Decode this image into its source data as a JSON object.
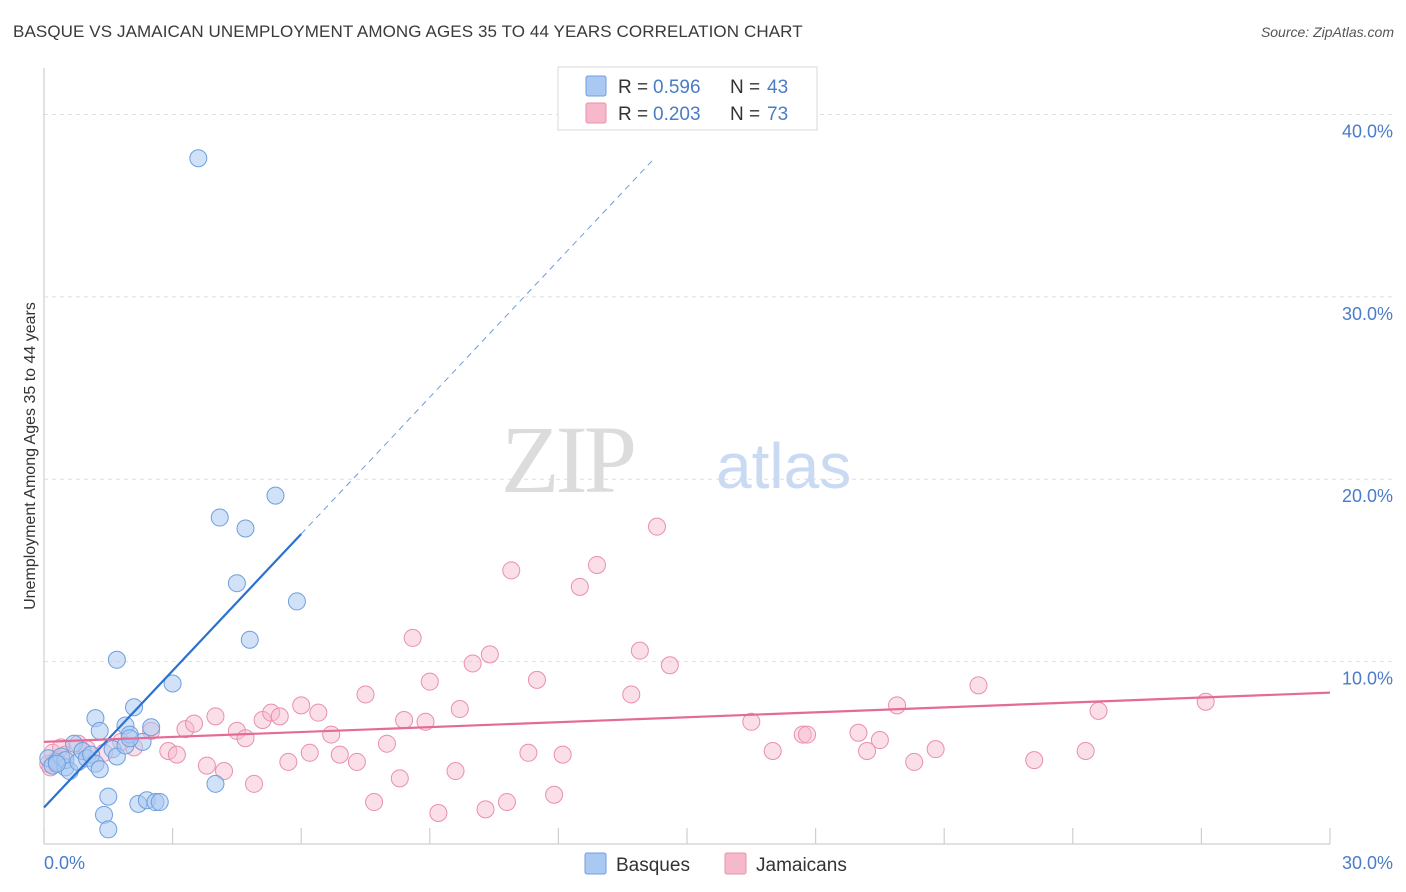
{
  "title": "BASQUE VS JAMAICAN UNEMPLOYMENT AMONG AGES 35 TO 44 YEARS CORRELATION CHART",
  "source": "Source: ZipAtlas.com",
  "watermark": {
    "zip": "ZIP",
    "atlas": "atlas"
  },
  "colors": {
    "basque_fill": "#a9c9f2",
    "basque_stroke": "#6e9fdd",
    "basque_line": "#2b72d0",
    "jamaican_fill": "#f6b9cc",
    "jamaican_stroke": "#ea8fab",
    "jamaican_line": "#e46b98",
    "tick_label": "#4a7cc8",
    "grid": "#dedede"
  },
  "legend_top": [
    {
      "series": "Basques",
      "r_label": "R =",
      "r_value": "0.596",
      "n_label": "N =",
      "n_value": "43"
    },
    {
      "series": "Jamaicans",
      "r_label": "R =",
      "r_value": "0.203",
      "n_label": "N =",
      "n_value": "73"
    }
  ],
  "chart_data": {
    "type": "scatter",
    "title": "BASQUE VS JAMAICAN UNEMPLOYMENT AMONG AGES 35 TO 44 YEARS CORRELATION CHART",
    "xlabel": "",
    "ylabel": "Unemployment Among Ages 35 to 44 years",
    "xlim": [
      0,
      30
    ],
    "ylim": [
      0,
      42
    ],
    "x_tick_labels": [
      "0.0%",
      "30.0%"
    ],
    "y_ticks": [
      10,
      20,
      30,
      40
    ],
    "y_tick_labels": [
      "10.0%",
      "20.0%",
      "30.0%",
      "40.0%"
    ],
    "grid": true,
    "legend_position": "bottom-center",
    "series": [
      {
        "name": "Basques",
        "r": 0.596,
        "n": 43,
        "trend": {
          "x0": 0,
          "y0": 2.0,
          "x1": 6.0,
          "y1": 17.0,
          "dash_x1": 14.2,
          "dash_y1": 37.5
        },
        "points": [
          [
            0.1,
            4.7
          ],
          [
            0.2,
            4.3
          ],
          [
            0.3,
            4.5
          ],
          [
            0.4,
            4.8
          ],
          [
            0.5,
            4.2
          ],
          [
            0.5,
            4.6
          ],
          [
            0.6,
            4.0
          ],
          [
            0.7,
            5.5
          ],
          [
            0.8,
            4.5
          ],
          [
            0.9,
            5.1
          ],
          [
            1.0,
            4.7
          ],
          [
            1.1,
            4.9
          ],
          [
            1.2,
            4.4
          ],
          [
            1.2,
            6.9
          ],
          [
            1.3,
            4.1
          ],
          [
            1.3,
            6.2
          ],
          [
            1.4,
            1.6
          ],
          [
            1.5,
            0.8
          ],
          [
            1.5,
            2.6
          ],
          [
            1.6,
            5.2
          ],
          [
            1.7,
            10.1
          ],
          [
            1.7,
            4.8
          ],
          [
            1.9,
            5.4
          ],
          [
            1.9,
            6.5
          ],
          [
            2.0,
            6.0
          ],
          [
            2.1,
            7.5
          ],
          [
            2.2,
            2.2
          ],
          [
            2.3,
            5.6
          ],
          [
            2.4,
            2.4
          ],
          [
            2.5,
            6.4
          ],
          [
            2.6,
            2.3
          ],
          [
            2.7,
            2.3
          ],
          [
            3.0,
            8.8
          ],
          [
            3.6,
            37.6
          ],
          [
            4.0,
            3.3
          ],
          [
            4.1,
            17.9
          ],
          [
            4.5,
            14.3
          ],
          [
            4.7,
            17.3
          ],
          [
            4.8,
            11.2
          ],
          [
            5.4,
            19.1
          ],
          [
            5.9,
            13.3
          ],
          [
            0.3,
            4.4
          ],
          [
            2.0,
            5.8
          ]
        ]
      },
      {
        "name": "Jamaicans",
        "r": 0.203,
        "n": 73,
        "trend": {
          "x0": 0,
          "y0": 5.6,
          "x1": 30,
          "y1": 8.3
        },
        "points": [
          [
            0.1,
            4.4
          ],
          [
            0.2,
            5.0
          ],
          [
            0.3,
            4.6
          ],
          [
            0.4,
            5.3
          ],
          [
            0.5,
            4.9
          ],
          [
            0.8,
            5.5
          ],
          [
            1.0,
            5.2
          ],
          [
            1.4,
            5.0
          ],
          [
            1.8,
            5.6
          ],
          [
            2.1,
            5.3
          ],
          [
            2.5,
            6.2
          ],
          [
            2.9,
            5.1
          ],
          [
            3.1,
            4.9
          ],
          [
            3.3,
            6.3
          ],
          [
            3.5,
            6.6
          ],
          [
            3.8,
            4.3
          ],
          [
            4.0,
            7.0
          ],
          [
            4.2,
            4.0
          ],
          [
            4.5,
            6.2
          ],
          [
            4.7,
            5.8
          ],
          [
            4.9,
            3.3
          ],
          [
            5.1,
            6.8
          ],
          [
            5.3,
            7.2
          ],
          [
            5.5,
            7.0
          ],
          [
            5.7,
            4.5
          ],
          [
            6.0,
            7.6
          ],
          [
            6.2,
            5.0
          ],
          [
            6.4,
            7.2
          ],
          [
            6.7,
            6.0
          ],
          [
            6.9,
            4.9
          ],
          [
            7.3,
            4.5
          ],
          [
            7.5,
            8.2
          ],
          [
            7.7,
            2.3
          ],
          [
            8.0,
            5.5
          ],
          [
            8.3,
            3.6
          ],
          [
            8.4,
            6.8
          ],
          [
            8.6,
            11.3
          ],
          [
            8.9,
            6.7
          ],
          [
            9.0,
            8.9
          ],
          [
            9.2,
            1.7
          ],
          [
            9.6,
            4.0
          ],
          [
            9.7,
            7.4
          ],
          [
            10.0,
            9.9
          ],
          [
            10.3,
            1.9
          ],
          [
            10.4,
            10.4
          ],
          [
            10.8,
            2.3
          ],
          [
            10.9,
            15.0
          ],
          [
            11.3,
            5.0
          ],
          [
            11.5,
            9.0
          ],
          [
            11.9,
            2.7
          ],
          [
            12.1,
            4.9
          ],
          [
            12.5,
            14.1
          ],
          [
            12.9,
            15.3
          ],
          [
            13.7,
            8.2
          ],
          [
            13.9,
            10.6
          ],
          [
            14.3,
            17.4
          ],
          [
            14.6,
            9.8
          ],
          [
            16.5,
            6.7
          ],
          [
            17.0,
            5.1
          ],
          [
            17.7,
            6.0
          ],
          [
            17.8,
            6.0
          ],
          [
            19.0,
            6.1
          ],
          [
            19.2,
            5.1
          ],
          [
            19.5,
            5.7
          ],
          [
            19.9,
            7.6
          ],
          [
            20.3,
            4.5
          ],
          [
            20.8,
            5.2
          ],
          [
            21.8,
            8.7
          ],
          [
            23.1,
            4.6
          ],
          [
            24.3,
            5.1
          ],
          [
            24.6,
            7.3
          ],
          [
            27.1,
            7.8
          ],
          [
            0.15,
            4.2
          ]
        ]
      }
    ]
  }
}
